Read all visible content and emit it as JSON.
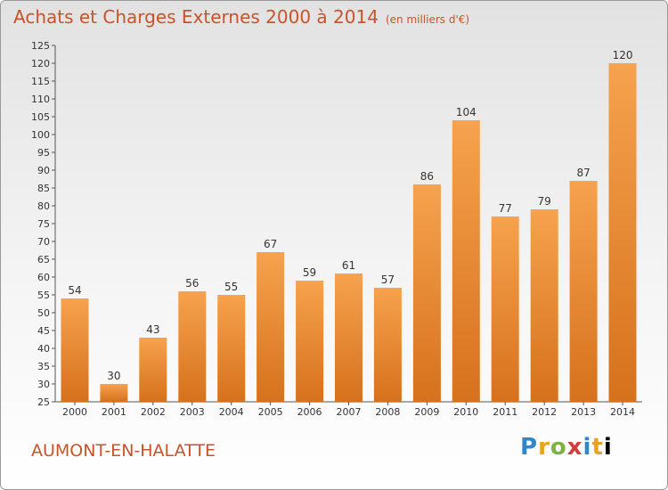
{
  "title": "Achats et Charges Externes 2000 à 2014",
  "unit": "(en milliers d'€)",
  "commune": "AUMONT-EN-HALATTE",
  "logo": [
    "P",
    "r",
    "o",
    "x",
    "i",
    "t",
    "i"
  ],
  "colors": {
    "bar_top": "#f6a24e",
    "bar_bottom": "#d6711c",
    "title": "#c8532a"
  },
  "chart_data": {
    "type": "bar",
    "title": "Achats et Charges Externes 2000 à 2014",
    "subtitle": "(en milliers d'€)",
    "xlabel": "",
    "ylabel": "",
    "categories": [
      "2000",
      "2001",
      "2002",
      "2003",
      "2004",
      "2005",
      "2006",
      "2007",
      "2008",
      "2009",
      "2010",
      "2011",
      "2012",
      "2013",
      "2014"
    ],
    "values": [
      54,
      30,
      43,
      56,
      55,
      67,
      59,
      61,
      57,
      86,
      104,
      77,
      79,
      87,
      120
    ],
    "ylim": [
      25,
      125
    ],
    "ytick_step": 5,
    "grid": false,
    "legend": "none"
  }
}
